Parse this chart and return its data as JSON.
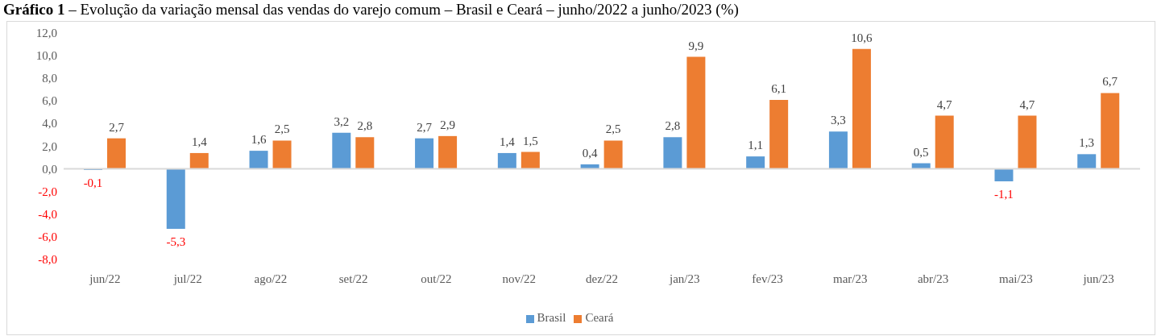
{
  "chart_data": {
    "type": "bar",
    "title": "Gráfico 1 – Evolução da variação mensal das vendas do varejo comum – Brasil e Ceará – junho/2022 a junho/2023 (%)",
    "categories": [
      "jun/22",
      "jul/22",
      "ago/22",
      "set/22",
      "out/22",
      "nov/22",
      "dez/22",
      "jan/23",
      "fev/23",
      "mar/23",
      "abr/23",
      "mai/23",
      "jun/23"
    ],
    "series": [
      {
        "name": "Brasil",
        "color": "#5b9bd5",
        "values": [
          -0.1,
          -5.3,
          1.6,
          3.2,
          2.7,
          1.4,
          0.4,
          2.8,
          1.1,
          3.3,
          0.5,
          -1.1,
          1.3
        ],
        "value_labels": [
          "-0,1",
          "-5,3",
          "1,6",
          "3,2",
          "2,7",
          "1,4",
          "0,4",
          "2,8",
          "1,1",
          "3,3",
          "0,5",
          "-1,1",
          "1,3"
        ]
      },
      {
        "name": "Ceará",
        "color": "#ed7d31",
        "values": [
          2.7,
          1.4,
          2.5,
          2.8,
          2.9,
          1.5,
          2.5,
          9.9,
          6.1,
          10.6,
          4.7,
          4.7,
          6.7
        ],
        "value_labels": [
          "2,7",
          "1,4",
          "2,5",
          "2,8",
          "2,9",
          "1,5",
          "2,5",
          "9,9",
          "6,1",
          "10,6",
          "4,7",
          "4,7",
          "6,7"
        ]
      }
    ],
    "ylim": [
      -8,
      12
    ],
    "yticks": [
      {
        "value": -8,
        "label": "-8,0"
      },
      {
        "value": -6,
        "label": "-6,0"
      },
      {
        "value": -4,
        "label": "-4,0"
      },
      {
        "value": -2,
        "label": "-2,0"
      },
      {
        "value": 0,
        "label": "0,0"
      },
      {
        "value": 2,
        "label": "2,0"
      },
      {
        "value": 4,
        "label": "4,0"
      },
      {
        "value": 6,
        "label": "6,0"
      },
      {
        "value": 8,
        "label": "8,0"
      },
      {
        "value": 10,
        "label": "10,0"
      },
      {
        "value": 12,
        "label": "12,0"
      }
    ],
    "legend": "bottom"
  }
}
